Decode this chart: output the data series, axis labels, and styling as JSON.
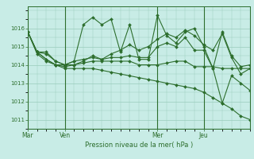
{
  "background_color": "#c8ece6",
  "grid_color": "#99ccbb",
  "line_color": "#2d6e2d",
  "marker_color": "#2d6e2d",
  "xlabel": "Pression niveau de la mer( hPa )",
  "ylim": [
    1010.5,
    1017.2
  ],
  "yticks": [
    1011,
    1012,
    1013,
    1014,
    1015,
    1016
  ],
  "day_labels": [
    "Mar",
    "Ven",
    "Mer",
    "Jeu"
  ],
  "day_positions": [
    0,
    4,
    14,
    19
  ],
  "num_points": 25,
  "series": [
    [
      1015.8,
      1014.7,
      1014.7,
      1014.2,
      1014.0,
      1014.2,
      1016.2,
      1016.6,
      1016.2,
      1016.5,
      1014.7,
      1016.2,
      1014.3,
      1014.3,
      1016.7,
      1015.6,
      1015.2,
      1015.8,
      1016.0,
      1015.0,
      1013.8,
      1015.8,
      1014.5,
      1013.9,
      1014.0
    ],
    [
      1015.8,
      1014.7,
      1014.3,
      1014.0,
      1014.0,
      1014.0,
      1014.1,
      1014.2,
      1014.2,
      1014.2,
      1014.2,
      1014.2,
      1014.0,
      1014.0,
      1014.0,
      1014.1,
      1014.2,
      1014.2,
      1013.9,
      1013.9,
      1013.9,
      1013.8,
      1013.8,
      1013.8,
      1013.8
    ],
    [
      1015.8,
      1014.6,
      1014.2,
      1014.0,
      1013.9,
      1014.0,
      1014.2,
      1014.5,
      1014.3,
      1014.6,
      1014.8,
      1015.1,
      1014.8,
      1015.0,
      1015.4,
      1015.7,
      1015.5,
      1015.9,
      1015.6,
      1015.1,
      1014.8,
      1015.7,
      1014.4,
      1013.5,
      1013.8
    ],
    [
      1015.8,
      1014.7,
      1014.6,
      1014.2,
      1014.0,
      1014.2,
      1014.3,
      1014.4,
      1014.3,
      1014.4,
      1014.4,
      1014.5,
      1014.4,
      1014.4,
      1015.0,
      1015.2,
      1015.0,
      1015.5,
      1014.8,
      1014.8,
      1013.8,
      1011.9,
      1013.4,
      1013.0,
      1012.6
    ],
    [
      1015.8,
      1014.7,
      1014.3,
      1014.0,
      1013.8,
      1013.8,
      1013.8,
      1013.8,
      1013.7,
      1013.6,
      1013.5,
      1013.4,
      1013.3,
      1013.2,
      1013.1,
      1013.0,
      1012.9,
      1012.8,
      1012.7,
      1012.5,
      1012.2,
      1011.9,
      1011.6,
      1011.2,
      1011.0
    ]
  ]
}
